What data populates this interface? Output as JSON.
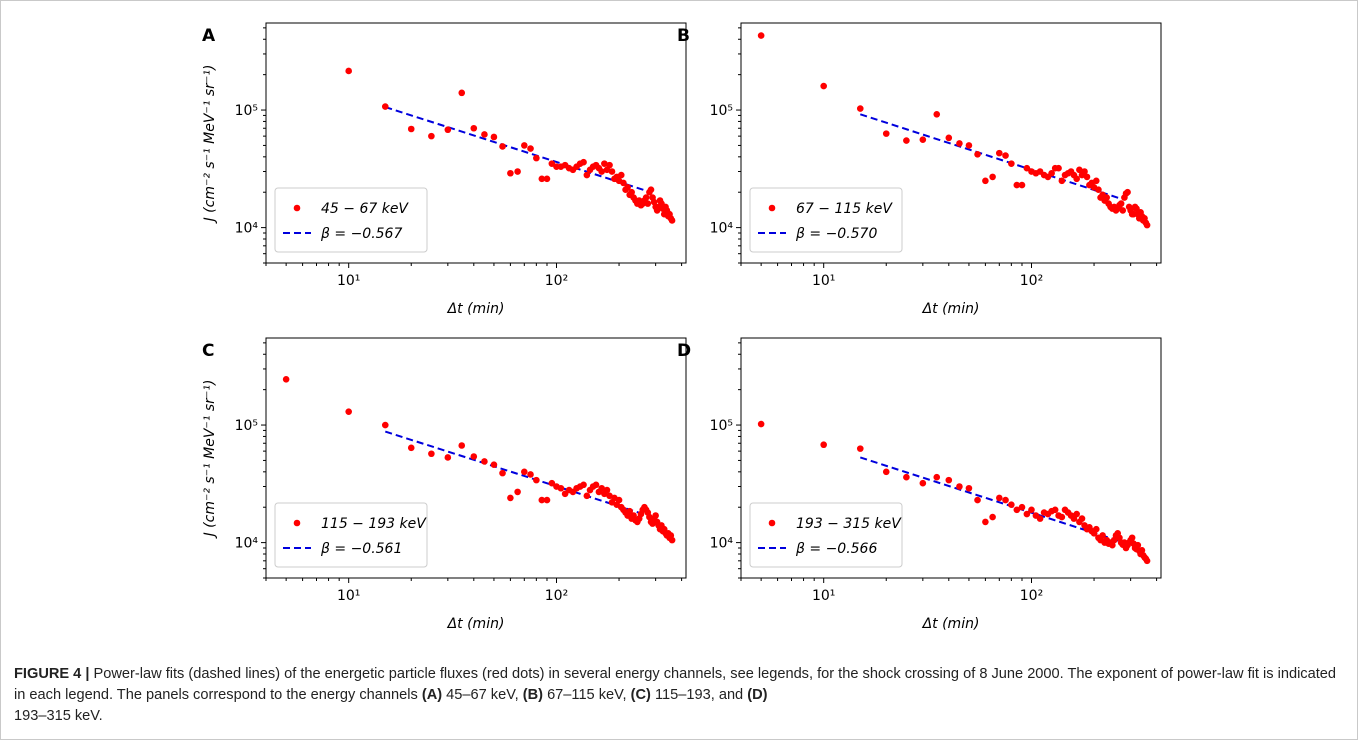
{
  "caption": {
    "label": "FIGURE 4 |",
    "text": "Power-law fits (dashed lines) of the energetic particle fluxes (red dots) in several energy channels, see legends, for the shock crossing of 8 June 2000. The exponent of power-law fit is indicated in each legend. The panels correspond to the energy channels",
    "a_label": "(A)",
    "a_text": "45–67 keV,",
    "b_label": "(B)",
    "b_text": "67–115 keV,",
    "c_label": "(C)",
    "c_text": "115–193, and",
    "d_label": "(D)",
    "d_text": "193–315 keV."
  },
  "colors": {
    "points": "#ff0000",
    "fit": "#0000dd",
    "axis": "#000000"
  },
  "chart_data": [
    {
      "type": "scatter",
      "panel_label": "A",
      "xscale": "log",
      "yscale": "log",
      "xlim": [
        4,
        420
      ],
      "ylim": [
        5000,
        550000
      ],
      "xlabel": "Δt (min)",
      "ylabel": "J (cm⁻² s⁻¹ MeV⁻¹ sr⁻¹)",
      "xtick_labels": [
        "10¹",
        "10²"
      ],
      "ytick_labels": [
        "10⁴",
        "10⁵"
      ],
      "legend": {
        "placement": "lower-left",
        "points": "45 − 67 keV",
        "fit": "β = −0.567"
      },
      "series": [
        {
          "x": [
            10,
            15,
            20,
            25,
            30,
            35,
            40,
            45,
            50,
            55,
            60,
            65,
            70,
            75,
            80,
            85,
            90,
            95,
            100,
            105,
            110,
            115,
            120,
            125,
            130,
            135,
            140,
            145,
            150,
            155,
            160,
            165,
            170,
            175,
            180,
            185,
            190,
            195,
            200,
            205,
            210,
            215,
            220,
            225,
            230,
            235,
            240,
            245,
            250,
            255,
            260,
            265,
            270,
            275,
            280,
            285,
            290,
            295,
            300,
            305,
            310,
            315,
            320,
            325,
            330,
            335,
            340,
            345,
            350,
            355,
            360
          ],
          "y": [
            215000,
            107000,
            69000,
            60000,
            68000,
            140000,
            70000,
            62000,
            59000,
            49000,
            29000,
            30000,
            50000,
            47000,
            39000,
            26000,
            26000,
            35000,
            33000,
            33000,
            34000,
            32000,
            31000,
            33000,
            35000,
            36000,
            28000,
            31000,
            33000,
            34000,
            32000,
            30000,
            35000,
            31000,
            34000,
            30000,
            26000,
            27000,
            25000,
            28000,
            24000,
            21000,
            22000,
            19000,
            20000,
            18000,
            17000,
            16000,
            17000,
            15500,
            16000,
            17000,
            18000,
            16000,
            20000,
            21000,
            18000,
            16500,
            15000,
            14000,
            15000,
            17000,
            16000,
            14500,
            13000,
            15000,
            14000,
            12500,
            13000,
            12000,
            11500
          ]
        }
      ],
      "fit": {
        "x": [
          15,
          270
        ],
        "y": [
          106000,
          20600
        ]
      }
    },
    {
      "type": "scatter",
      "panel_label": "B",
      "xscale": "log",
      "yscale": "log",
      "xlim": [
        4,
        420
      ],
      "ylim": [
        5000,
        550000
      ],
      "xlabel": "Δt (min)",
      "ylabel": "",
      "xtick_labels": [
        "10¹",
        "10²"
      ],
      "ytick_labels": [
        "10⁴",
        "10⁵"
      ],
      "legend": {
        "placement": "lower-left",
        "points": "67 − 115 keV",
        "fit": "β = −0.570"
      },
      "series": [
        {
          "x": [
            5,
            10,
            15,
            20,
            25,
            30,
            35,
            40,
            45,
            50,
            55,
            60,
            65,
            70,
            75,
            80,
            85,
            90,
            95,
            100,
            105,
            110,
            115,
            120,
            125,
            130,
            135,
            140,
            145,
            150,
            155,
            160,
            165,
            170,
            175,
            180,
            185,
            190,
            195,
            200,
            205,
            210,
            215,
            220,
            225,
            230,
            235,
            240,
            245,
            250,
            255,
            260,
            265,
            270,
            275,
            280,
            285,
            290,
            295,
            300,
            305,
            310,
            315,
            320,
            325,
            330,
            335,
            340,
            345,
            350,
            355,
            360
          ],
          "y": [
            430000,
            160000,
            103000,
            63000,
            55000,
            56000,
            92000,
            58000,
            52000,
            50000,
            42000,
            25000,
            27000,
            43000,
            41000,
            35000,
            23000,
            23000,
            32000,
            30000,
            29000,
            30000,
            28000,
            27000,
            29000,
            32000,
            32000,
            25000,
            28000,
            29000,
            30000,
            28000,
            26000,
            31000,
            28000,
            30000,
            27000,
            23000,
            24000,
            22000,
            25000,
            21000,
            18000,
            19000,
            17000,
            18000,
            16000,
            15000,
            14500,
            15000,
            14000,
            14500,
            15500,
            16000,
            14000,
            18000,
            19500,
            20000,
            15000,
            14000,
            13000,
            13000,
            15000,
            14500,
            13000,
            12000,
            13500,
            12500,
            11500,
            12000,
            11000,
            10500
          ]
        }
      ],
      "fit": {
        "x": [
          15,
          270
        ],
        "y": [
          92000,
          17600
        ]
      }
    },
    {
      "type": "scatter",
      "panel_label": "C",
      "xscale": "log",
      "yscale": "log",
      "xlim": [
        4,
        420
      ],
      "ylim": [
        5000,
        550000
      ],
      "xlabel": "Δt (min)",
      "ylabel": "J (cm⁻² s⁻¹ MeV⁻¹ sr⁻¹)",
      "xtick_labels": [
        "10¹",
        "10²"
      ],
      "ytick_labels": [
        "10⁴",
        "10⁵"
      ],
      "legend": {
        "placement": "lower-left",
        "points": "115 − 193 keV",
        "fit": "β = −0.561"
      },
      "series": [
        {
          "x": [
            5,
            10,
            15,
            20,
            25,
            30,
            35,
            40,
            45,
            50,
            55,
            60,
            65,
            70,
            75,
            80,
            85,
            90,
            95,
            100,
            105,
            110,
            115,
            120,
            125,
            130,
            135,
            140,
            145,
            150,
            155,
            160,
            165,
            170,
            175,
            180,
            185,
            190,
            195,
            200,
            205,
            210,
            215,
            220,
            225,
            230,
            235,
            240,
            245,
            250,
            255,
            260,
            265,
            270,
            275,
            280,
            285,
            290,
            295,
            300,
            305,
            310,
            315,
            320,
            325,
            330,
            335,
            340,
            345,
            350,
            355,
            360
          ],
          "y": [
            245000,
            130000,
            100000,
            64000,
            57000,
            53000,
            67000,
            54000,
            49000,
            46000,
            39000,
            24000,
            27000,
            40000,
            38000,
            34000,
            23000,
            23000,
            32000,
            30000,
            29000,
            26000,
            28000,
            27000,
            29000,
            30000,
            31000,
            25000,
            28000,
            30000,
            31000,
            27000,
            29000,
            26000,
            28000,
            25000,
            22000,
            24000,
            21000,
            23000,
            20000,
            19000,
            18000,
            17000,
            18500,
            16000,
            17000,
            15500,
            15000,
            16000,
            17500,
            19000,
            20000,
            19000,
            18000,
            16500,
            15000,
            14500,
            16000,
            17000,
            15000,
            14000,
            13000,
            14000,
            12500,
            13000,
            12000,
            11500,
            12000,
            11000,
            11500,
            10500
          ]
        }
      ],
      "fit": {
        "x": [
          15,
          270
        ],
        "y": [
          88000,
          17200
        ]
      }
    },
    {
      "type": "scatter",
      "panel_label": "D",
      "xscale": "log",
      "yscale": "log",
      "xlim": [
        4,
        420
      ],
      "ylim": [
        5000,
        550000
      ],
      "xlabel": "Δt (min)",
      "ylabel": "",
      "xtick_labels": [
        "10¹",
        "10²"
      ],
      "ytick_labels": [
        "10⁴",
        "10⁵"
      ],
      "legend": {
        "placement": "lower-left",
        "points": "193 − 315 keV",
        "fit": "β = −0.566"
      },
      "series": [
        {
          "x": [
            5,
            10,
            15,
            20,
            25,
            30,
            35,
            40,
            45,
            50,
            55,
            60,
            65,
            70,
            75,
            80,
            85,
            90,
            95,
            100,
            105,
            110,
            115,
            120,
            125,
            130,
            135,
            140,
            145,
            150,
            155,
            160,
            165,
            170,
            175,
            180,
            185,
            190,
            195,
            200,
            205,
            210,
            215,
            220,
            225,
            230,
            235,
            240,
            245,
            250,
            255,
            260,
            265,
            270,
            275,
            280,
            285,
            290,
            295,
            300,
            305,
            310,
            315,
            320,
            325,
            330,
            335,
            340,
            345,
            350,
            355,
            360
          ],
          "y": [
            102000,
            68000,
            63000,
            40000,
            36000,
            32000,
            36000,
            34000,
            30000,
            29000,
            23000,
            15000,
            16500,
            24000,
            23000,
            21000,
            19000,
            20000,
            17500,
            19000,
            17000,
            16000,
            18000,
            17500,
            18500,
            19000,
            17000,
            16500,
            19000,
            18000,
            17000,
            16000,
            17500,
            15000,
            16000,
            14000,
            13000,
            13500,
            12500,
            12000,
            13000,
            11000,
            10500,
            11500,
            10000,
            10500,
            9800,
            10000,
            9500,
            10500,
            11500,
            12000,
            11000,
            10000,
            9600,
            10000,
            9000,
            9500,
            10000,
            10500,
            11000,
            9800,
            9000,
            8800,
            9500,
            8500,
            8000,
            8600,
            7800,
            7500,
            7300,
            7000
          ]
        }
      ],
      "fit": {
        "x": [
          15,
          270
        ],
        "y": [
          53000,
          10200
        ]
      }
    }
  ]
}
